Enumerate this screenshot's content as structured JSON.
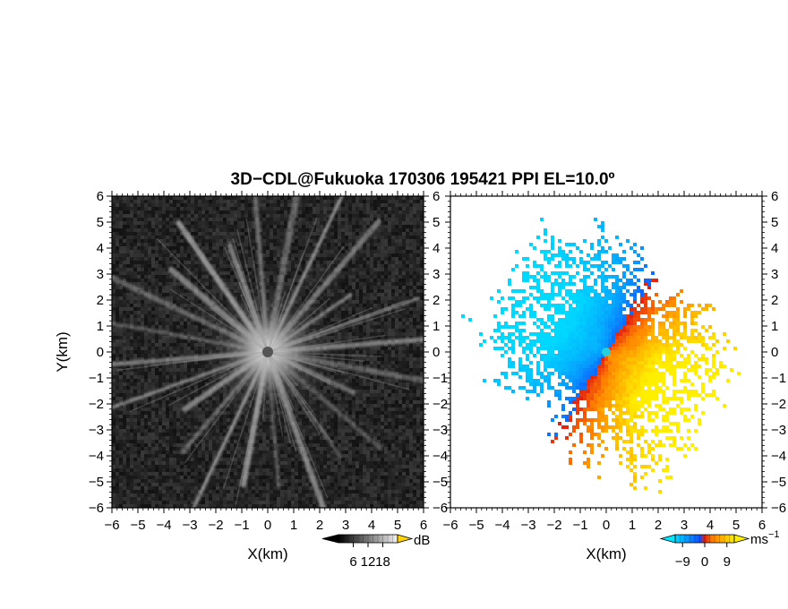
{
  "chart_data": [
    {
      "type": "heatmap",
      "panel": "reflectivity",
      "title": "3D−CDL@Fukuoka 170306 195421 PPI EL=10.0º",
      "xlabel": "X(km)",
      "ylabel": "Y(km)",
      "xlim": [
        -6,
        6
      ],
      "ylim": [
        -6,
        6
      ],
      "xticks": [
        "−6",
        "−5",
        "−4",
        "−3",
        "−2",
        "−1",
        "0",
        "1",
        "2",
        "3",
        "4",
        "5",
        "6"
      ],
      "yticks": [
        "−6",
        "−5",
        "−4",
        "−3",
        "−2",
        "−1",
        "0",
        "1",
        "2",
        "3",
        "4",
        "5",
        "6"
      ],
      "colormap": "grayscale",
      "colorbar": {
        "unit": "dB",
        "ticks": [
          "6",
          "12",
          "18"
        ],
        "range": [
          0,
          24
        ]
      },
      "background_color": "#1c1c1c",
      "center_marker_color": "#555555"
    },
    {
      "type": "heatmap",
      "panel": "doppler_velocity",
      "xlabel": "X(km)",
      "xlim": [
        -6,
        6
      ],
      "ylim": [
        -6,
        6
      ],
      "xticks": [
        "−6",
        "−5",
        "−4",
        "−3",
        "−2",
        "−1",
        "0",
        "1",
        "2",
        "3",
        "4",
        "5",
        "6"
      ],
      "yticks": [
        "−6",
        "−5",
        "−4",
        "−3",
        "−2",
        "−1",
        "0",
        "1",
        "2",
        "3",
        "4",
        "5",
        "6"
      ],
      "colormap": "cyan-blue-red-orange-yellow",
      "colorbar": {
        "unit": "ms",
        "unit_sup": "−1",
        "ticks": [
          "−9",
          "0",
          "9"
        ],
        "range": [
          -12,
          12
        ]
      },
      "colors": [
        "#00d8ff",
        "#1060ff",
        "#e02010",
        "#ff8000",
        "#ffee00"
      ],
      "center_marker_color": "#22d0e0"
    }
  ]
}
